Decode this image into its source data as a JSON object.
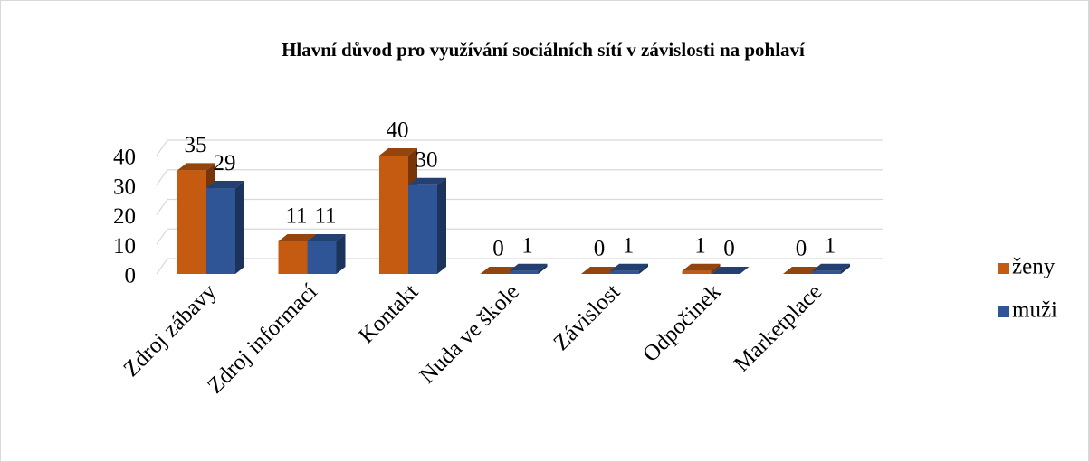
{
  "chart_data": {
    "type": "bar",
    "title": "Hlavní důvod pro využívání sociálních sítí v závislosti na pohlaví",
    "categories": [
      "Zdroj zábavy",
      "Zdroj informací",
      "Kontakt",
      "Nuda ve škole",
      "Závislost",
      "Odpočinek",
      "Marketplace"
    ],
    "series": [
      {
        "name": "ženy",
        "color": "#c55a11",
        "values": [
          35,
          11,
          40,
          0,
          0,
          1,
          0
        ]
      },
      {
        "name": "muži",
        "color": "#2f5597",
        "values": [
          29,
          11,
          30,
          1,
          1,
          0,
          1
        ]
      }
    ],
    "ylim": [
      0,
      40
    ],
    "yticks": [
      0,
      10,
      20,
      30,
      40
    ],
    "grid": true,
    "legend": "right"
  }
}
